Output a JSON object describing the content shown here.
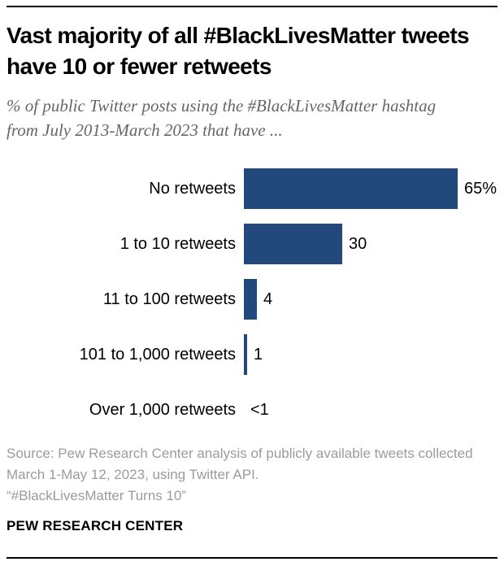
{
  "header": {
    "title": "Vast majority of all #BlackLivesMatter tweets have 10 or fewer retweets",
    "subtitle": "% of public Twitter posts using the #BlackLivesMatter hashtag from July 2013-March 2023 that have ..."
  },
  "chart_data": {
    "type": "bar",
    "orientation": "horizontal",
    "categories": [
      "No retweets",
      "1 to 10 retweets",
      "11 to 100 retweets",
      "101 to 1,000 retweets",
      "Over 1,000 retweets"
    ],
    "values": [
      65,
      30,
      4,
      1,
      0.5
    ],
    "value_labels": [
      "65%",
      "30",
      "4",
      "1",
      "<1"
    ],
    "bar_color": "#21497C",
    "xlim": [
      0,
      65
    ],
    "grid": false,
    "legend": "none"
  },
  "footer": {
    "source": "Source: Pew Research Center analysis of publicly available tweets collected March 1-May 12, 2023, using Twitter API.",
    "quote": "“#BlackLivesMatter Turns 10”",
    "brand": "PEW RESEARCH CENTER"
  }
}
